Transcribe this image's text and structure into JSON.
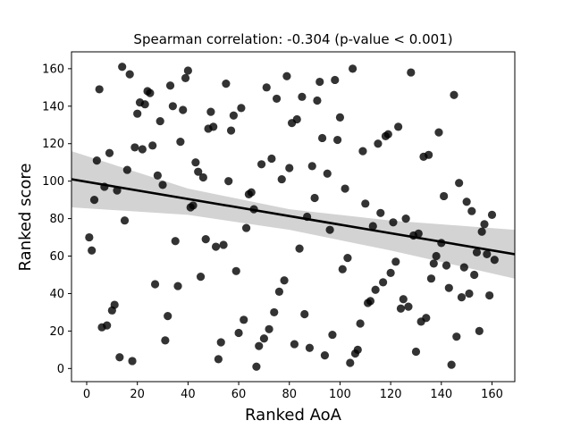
{
  "chart_data": {
    "type": "scatter",
    "title": "Spearman correlation: -0.304 (p-value < 0.001)",
    "xlabel": "Ranked AoA",
    "ylabel": "Ranked score",
    "xlim": [
      -6,
      169
    ],
    "ylim": [
      -7,
      169
    ],
    "xticks": [
      0,
      20,
      40,
      60,
      80,
      100,
      120,
      140,
      160
    ],
    "yticks": [
      0,
      20,
      40,
      60,
      80,
      100,
      120,
      140,
      160
    ],
    "grid": false,
    "colors": {
      "points": "#000000",
      "line": "#000000",
      "band": "#d3d3d3"
    },
    "regression": {
      "x": [
        -6,
        169
      ],
      "y": [
        101,
        61
      ]
    },
    "confidence_band": {
      "x": [
        -6,
        40,
        80,
        120,
        169
      ],
      "upper": [
        116,
        96,
        85,
        79,
        74
      ],
      "lower": [
        86,
        82,
        74,
        63,
        48
      ]
    },
    "points": [
      [
        1,
        70
      ],
      [
        2,
        63
      ],
      [
        3,
        90
      ],
      [
        4,
        111
      ],
      [
        5,
        149
      ],
      [
        6,
        22
      ],
      [
        7,
        97
      ],
      [
        8,
        23
      ],
      [
        9,
        115
      ],
      [
        10,
        31
      ],
      [
        11,
        34
      ],
      [
        12,
        95
      ],
      [
        13,
        6
      ],
      [
        14,
        161
      ],
      [
        15,
        79
      ],
      [
        16,
        106
      ],
      [
        17,
        157
      ],
      [
        18,
        4
      ],
      [
        19,
        118
      ],
      [
        20,
        136
      ],
      [
        21,
        142
      ],
      [
        22,
        117
      ],
      [
        23,
        141
      ],
      [
        24,
        148
      ],
      [
        25,
        147
      ],
      [
        26,
        119
      ],
      [
        27,
        45
      ],
      [
        28,
        103
      ],
      [
        29,
        132
      ],
      [
        30,
        98
      ],
      [
        31,
        15
      ],
      [
        32,
        28
      ],
      [
        33,
        151
      ],
      [
        34,
        140
      ],
      [
        35,
        68
      ],
      [
        36,
        44
      ],
      [
        37,
        121
      ],
      [
        38,
        138
      ],
      [
        39,
        155
      ],
      [
        40,
        159
      ],
      [
        41,
        86
      ],
      [
        42,
        87
      ],
      [
        43,
        110
      ],
      [
        44,
        105
      ],
      [
        45,
        49
      ],
      [
        46,
        102
      ],
      [
        47,
        69
      ],
      [
        48,
        128
      ],
      [
        49,
        137
      ],
      [
        50,
        129
      ],
      [
        51,
        65
      ],
      [
        52,
        5
      ],
      [
        53,
        14
      ],
      [
        54,
        66
      ],
      [
        55,
        152
      ],
      [
        56,
        100
      ],
      [
        57,
        127
      ],
      [
        58,
        135
      ],
      [
        59,
        52
      ],
      [
        60,
        19
      ],
      [
        61,
        139
      ],
      [
        62,
        26
      ],
      [
        63,
        75
      ],
      [
        64,
        93
      ],
      [
        65,
        94
      ],
      [
        66,
        85
      ],
      [
        67,
        1
      ],
      [
        68,
        12
      ],
      [
        69,
        109
      ],
      [
        70,
        16
      ],
      [
        71,
        150
      ],
      [
        72,
        21
      ],
      [
        73,
        112
      ],
      [
        74,
        30
      ],
      [
        75,
        144
      ],
      [
        76,
        41
      ],
      [
        77,
        101
      ],
      [
        78,
        47
      ],
      [
        79,
        156
      ],
      [
        80,
        107
      ],
      [
        81,
        131
      ],
      [
        82,
        13
      ],
      [
        83,
        133
      ],
      [
        84,
        64
      ],
      [
        85,
        145
      ],
      [
        86,
        29
      ],
      [
        87,
        81
      ],
      [
        88,
        11
      ],
      [
        89,
        108
      ],
      [
        90,
        91
      ],
      [
        91,
        143
      ],
      [
        92,
        153
      ],
      [
        93,
        123
      ],
      [
        94,
        7
      ],
      [
        95,
        104
      ],
      [
        96,
        74
      ],
      [
        97,
        18
      ],
      [
        98,
        154
      ],
      [
        99,
        122
      ],
      [
        100,
        134
      ],
      [
        101,
        53
      ],
      [
        102,
        96
      ],
      [
        103,
        59
      ],
      [
        104,
        3
      ],
      [
        105,
        160
      ],
      [
        106,
        8
      ],
      [
        107,
        10
      ],
      [
        108,
        24
      ],
      [
        109,
        116
      ],
      [
        110,
        88
      ],
      [
        111,
        35
      ],
      [
        112,
        36
      ],
      [
        113,
        76
      ],
      [
        114,
        42
      ],
      [
        115,
        120
      ],
      [
        116,
        83
      ],
      [
        117,
        46
      ],
      [
        118,
        124
      ],
      [
        119,
        125
      ],
      [
        120,
        51
      ],
      [
        121,
        78
      ],
      [
        122,
        57
      ],
      [
        123,
        129
      ],
      [
        124,
        32
      ],
      [
        125,
        37
      ],
      [
        126,
        80
      ],
      [
        127,
        33
      ],
      [
        128,
        158
      ],
      [
        129,
        71
      ],
      [
        130,
        9
      ],
      [
        131,
        72
      ],
      [
        132,
        25
      ],
      [
        133,
        113
      ],
      [
        134,
        27
      ],
      [
        135,
        114
      ],
      [
        136,
        48
      ],
      [
        137,
        56
      ],
      [
        138,
        60
      ],
      [
        139,
        126
      ],
      [
        140,
        67
      ],
      [
        141,
        92
      ],
      [
        142,
        55
      ],
      [
        143,
        43
      ],
      [
        144,
        2
      ],
      [
        145,
        146
      ],
      [
        146,
        17
      ],
      [
        147,
        99
      ],
      [
        148,
        38
      ],
      [
        149,
        54
      ],
      [
        150,
        89
      ],
      [
        151,
        40
      ],
      [
        152,
        84
      ],
      [
        153,
        50
      ],
      [
        154,
        62
      ],
      [
        155,
        20
      ],
      [
        156,
        73
      ],
      [
        157,
        77
      ],
      [
        158,
        61
      ],
      [
        159,
        39
      ],
      [
        160,
        82
      ],
      [
        161,
        58
      ]
    ]
  }
}
